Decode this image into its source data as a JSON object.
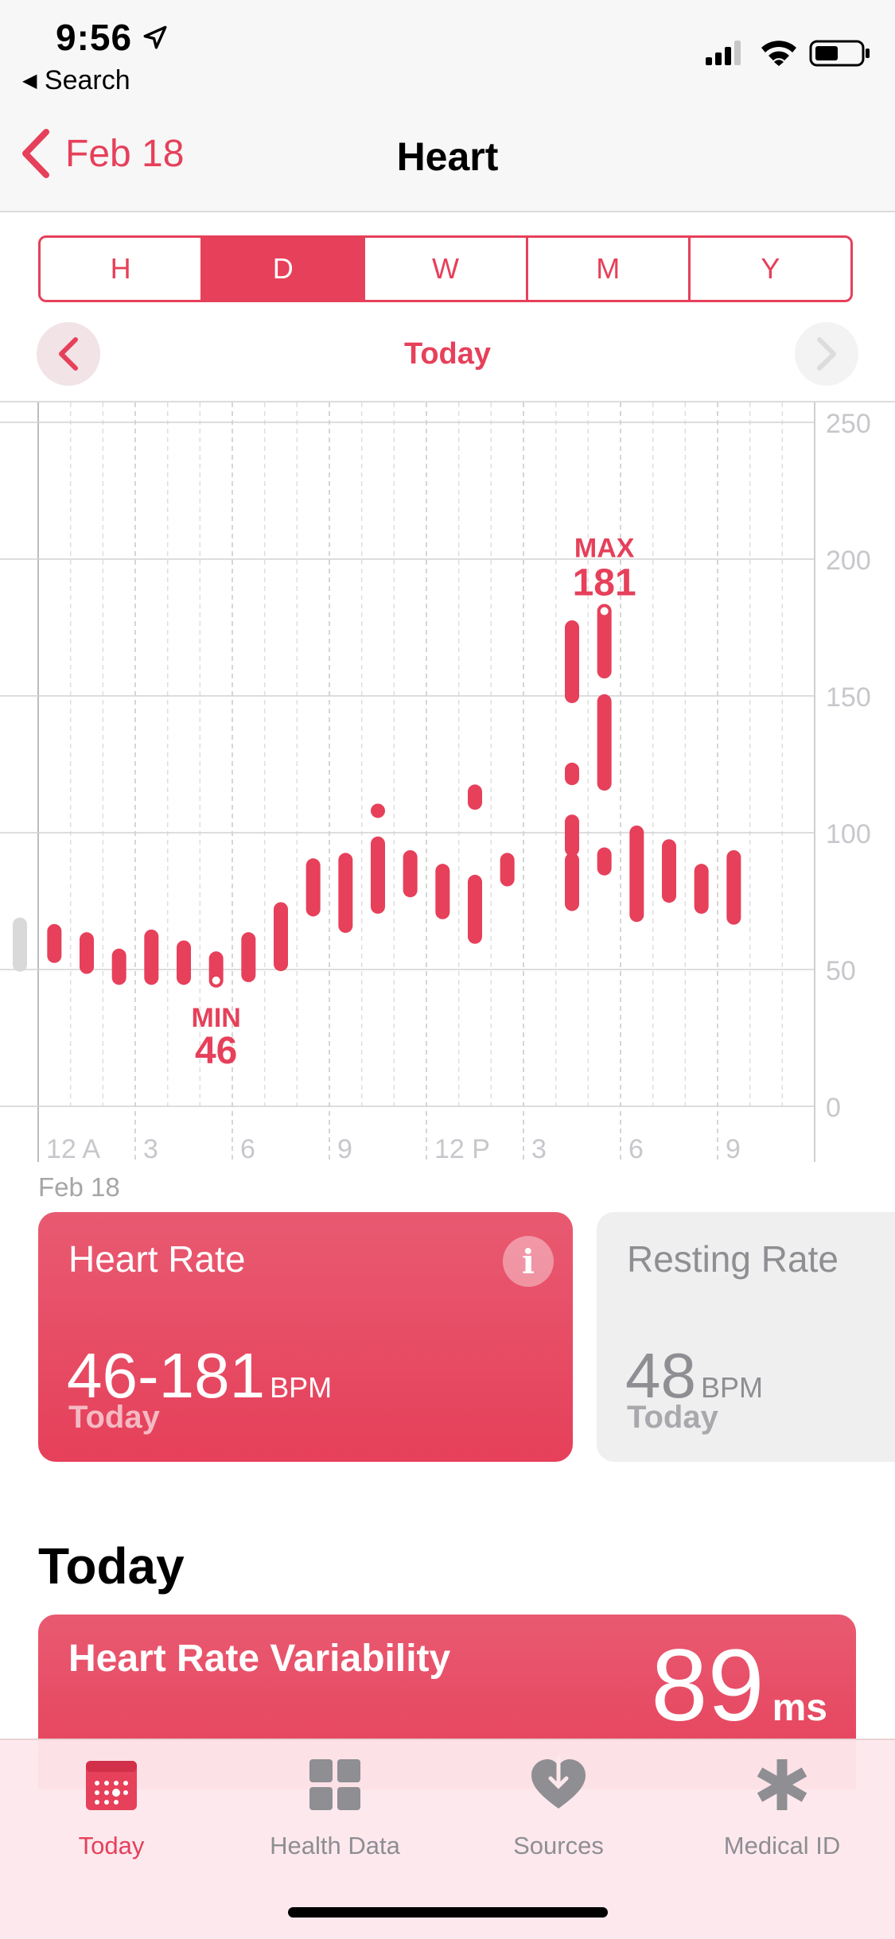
{
  "status_bar": {
    "time": "9:56",
    "back_label": "Search"
  },
  "nav": {
    "back_label": "Feb 18",
    "title": "Heart"
  },
  "segments": [
    {
      "label": "H",
      "selected": false
    },
    {
      "label": "D",
      "selected": true
    },
    {
      "label": "W",
      "selected": false
    },
    {
      "label": "M",
      "selected": false
    },
    {
      "label": "Y",
      "selected": false
    }
  ],
  "period": {
    "label": "Today"
  },
  "chart_date_label": "Feb 18",
  "chart_data": {
    "type": "range-bar",
    "y_ticks": [
      0,
      50,
      100,
      150,
      200,
      250
    ],
    "ylim": [
      0,
      250
    ],
    "x_tick_labels": [
      "12 A",
      "3",
      "6",
      "9",
      "12 P",
      "3",
      "6",
      "9"
    ],
    "x_tick_hours": [
      0,
      3,
      6,
      9,
      12,
      15,
      18,
      21
    ],
    "xlim_hours": [
      0,
      24
    ],
    "min_label": "MIN",
    "min_value": "46",
    "min_hour": 5.5,
    "max_label": "MAX",
    "max_value": "181",
    "max_hour": 17.5,
    "series": [
      {
        "hour": 0.5,
        "low": 55,
        "high": 64
      },
      {
        "hour": 1.5,
        "low": 51,
        "high": 61
      },
      {
        "hour": 2.5,
        "low": 47,
        "high": 55
      },
      {
        "hour": 3.5,
        "low": 47,
        "high": 62
      },
      {
        "hour": 4.5,
        "low": 47,
        "high": 58
      },
      {
        "hour": 5.5,
        "low": 46,
        "high": 54
      },
      {
        "hour": 6.5,
        "low": 48,
        "high": 61
      },
      {
        "hour": 7.5,
        "low": 52,
        "high": 72
      },
      {
        "hour": 8.5,
        "low": 72,
        "high": 88
      },
      {
        "hour": 9.5,
        "low": 66,
        "high": 90
      },
      {
        "hour": 10.5,
        "low": 108,
        "high": 108
      },
      {
        "hour": 10.5,
        "low": 73,
        "high": 96
      },
      {
        "hour": 11.5,
        "low": 79,
        "high": 91
      },
      {
        "hour": 12.5,
        "low": 71,
        "high": 86
      },
      {
        "hour": 13.5,
        "low": 111,
        "high": 115
      },
      {
        "hour": 13.5,
        "low": 62,
        "high": 82
      },
      {
        "hour": 14.5,
        "low": 83,
        "high": 90
      },
      {
        "hour": 16.5,
        "low": 150,
        "high": 175
      },
      {
        "hour": 16.5,
        "low": 120,
        "high": 123
      },
      {
        "hour": 16.5,
        "low": 94,
        "high": 104
      },
      {
        "hour": 16.5,
        "low": 74,
        "high": 90
      },
      {
        "hour": 17.5,
        "low": 159,
        "high": 181
      },
      {
        "hour": 17.5,
        "low": 118,
        "high": 148
      },
      {
        "hour": 17.5,
        "low": 87,
        "high": 92
      },
      {
        "hour": 18.5,
        "low": 70,
        "high": 100
      },
      {
        "hour": 19.5,
        "low": 77,
        "high": 95
      },
      {
        "hour": 20.5,
        "low": 73,
        "high": 86
      },
      {
        "hour": 21.5,
        "low": 69,
        "high": 91
      }
    ]
  },
  "cards": {
    "heart_rate": {
      "title": "Heart Rate",
      "value": "46-181",
      "unit": "BPM",
      "subtitle": "Today"
    },
    "resting_rate": {
      "title": "Resting Rate",
      "value": "48",
      "unit": "BPM",
      "subtitle": "Today"
    }
  },
  "today_section": {
    "title": "Today",
    "hrv": {
      "title": "Heart Rate Variability",
      "value": "89",
      "unit": "ms"
    }
  },
  "tabbar": [
    {
      "label": "Today",
      "icon": "calendar-icon",
      "active": true
    },
    {
      "label": "Health Data",
      "icon": "grid-icon",
      "active": false
    },
    {
      "label": "Sources",
      "icon": "heart-download-icon",
      "active": false
    },
    {
      "label": "Medical ID",
      "icon": "asterisk-icon",
      "active": false
    }
  ],
  "colors": {
    "accent": "#e6405a",
    "inactive": "#8e8e93"
  }
}
